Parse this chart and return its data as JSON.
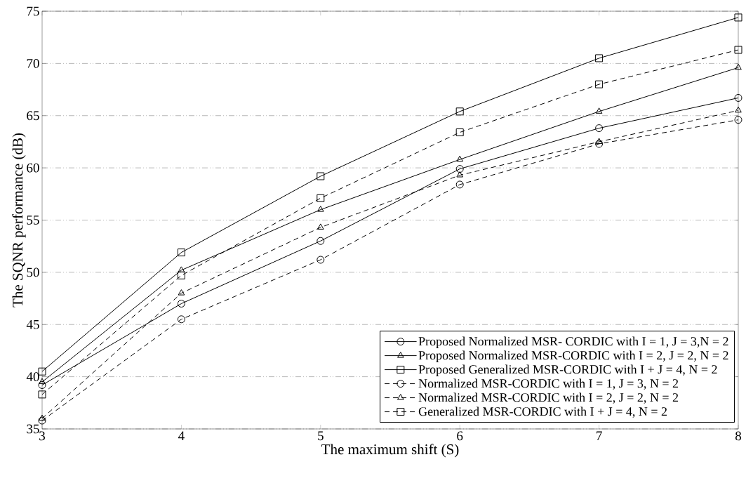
{
  "chart_data": {
    "type": "line",
    "xlabel": "The maximum shift (S)",
    "ylabel": "The SQNR performance (dB)",
    "x": [
      3,
      4,
      5,
      6,
      7,
      8
    ],
    "xlim": [
      3,
      8
    ],
    "xticks": [
      3,
      4,
      5,
      6,
      7,
      8
    ],
    "ylim": [
      35,
      75
    ],
    "yticks": [
      35,
      40,
      45,
      50,
      55,
      60,
      65,
      70,
      75
    ],
    "grid": "y",
    "legend": "bottom right",
    "series": [
      {
        "name": "Proposed Normalized MSR- CORDIC with I = 1, J = 3,N = 2",
        "color": "#000000",
        "marker": "circle",
        "line_style": "solid",
        "values": [
          39.2,
          47,
          53,
          59.9,
          63.8,
          66.7
        ]
      },
      {
        "name": "Proposed Normalized MSR-CORDIC with I = 2, J = 2, N = 2",
        "color": "#000000",
        "marker": "triangle",
        "line_style": "solid",
        "values": [
          39.5,
          50.2,
          56,
          60.8,
          65.4,
          69.6
        ]
      },
      {
        "name": "Proposed Generalized MSR-CORDIC with I + J = 4, N = 2",
        "color": "#000000",
        "marker": "square",
        "line_style": "solid",
        "values": [
          40.5,
          51.9,
          59.2,
          65.4,
          70.5,
          74.4
        ]
      },
      {
        "name": "Normalized MSR-CORDIC with I = 1, J = 3, N = 2",
        "color": "#000000",
        "marker": "circle",
        "line_style": "dashed",
        "values": [
          35.8,
          45.5,
          51.2,
          58.4,
          62.3,
          64.6
        ]
      },
      {
        "name": "Normalized MSR-CORDIC with I = 2, J = 2, N = 2",
        "color": "#000000",
        "marker": "triangle",
        "line_style": "dashed",
        "values": [
          36,
          48,
          54.3,
          59.3,
          62.5,
          65.5
        ]
      },
      {
        "name": "Generalized MSR-CORDIC with I + J = 4, N = 2",
        "color": "#000000",
        "marker": "square",
        "line_style": "dashed",
        "values": [
          38.3,
          49.7,
          57.1,
          63.4,
          68,
          71.3
        ]
      }
    ]
  }
}
